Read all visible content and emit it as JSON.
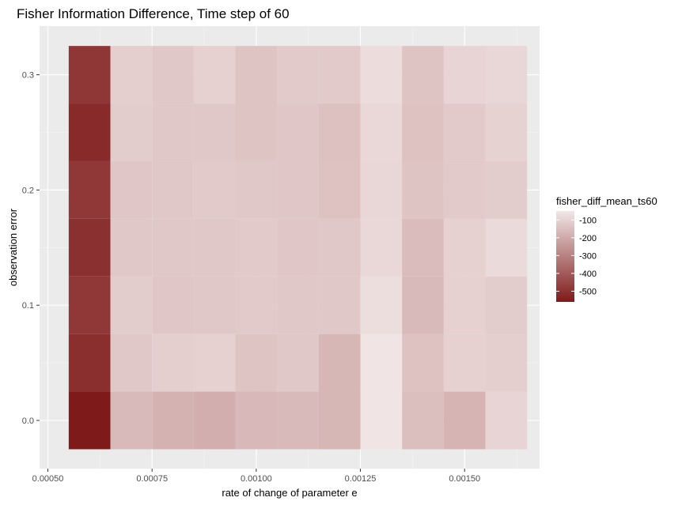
{
  "chart_data": {
    "type": "heatmap",
    "title": "Fisher Information Difference, Time step of 60",
    "xlabel": "rate of change of parameter e",
    "ylabel": "observation error",
    "x_ticks": [
      "0.00050",
      "0.00075",
      "0.00100",
      "0.00125",
      "0.00150"
    ],
    "y_ticks": [
      "0.0",
      "0.1",
      "0.2",
      "0.3"
    ],
    "xlim": [
      0.00048,
      0.00168
    ],
    "ylim": [
      -0.025,
      0.3
    ],
    "x": [
      0.0006,
      0.0007,
      0.0008,
      0.0009,
      0.001,
      0.0011,
      0.0012,
      0.0013,
      0.0014,
      0.0015,
      0.0016
    ],
    "y": [
      0.0,
      0.05,
      0.1,
      0.15,
      0.2,
      0.25,
      0.3
    ],
    "values": [
      [
        -560,
        -160,
        -180,
        -190,
        -165,
        -160,
        -170,
        -55,
        -150,
        -175,
        -95
      ],
      [
        -510,
        -125,
        -110,
        -105,
        -135,
        -125,
        -170,
        -55,
        -140,
        -105,
        -110
      ],
      [
        -485,
        -115,
        -130,
        -125,
        -120,
        -125,
        -125,
        -70,
        -160,
        -105,
        -115
      ],
      [
        -505,
        -125,
        -125,
        -125,
        -120,
        -130,
        -125,
        -85,
        -155,
        -105,
        -80
      ],
      [
        -485,
        -130,
        -125,
        -120,
        -125,
        -130,
        -140,
        -90,
        -135,
        -120,
        -115
      ],
      [
        -520,
        -115,
        -125,
        -125,
        -135,
        -130,
        -145,
        -85,
        -140,
        -120,
        -100
      ],
      [
        -490,
        -110,
        -125,
        -105,
        -135,
        -120,
        -120,
        -75,
        -135,
        -95,
        -90
      ]
    ],
    "legend": {
      "title": "fisher_diff_mean_ts60",
      "labels": [
        "-100",
        "-200",
        "-300",
        "-400",
        "-500"
      ],
      "breaks": [
        -100,
        -200,
        -300,
        -400,
        -500
      ],
      "range": [
        -560,
        -50
      ],
      "low_color": "#7f1a1a",
      "high_color": "#f2e6e6",
      "placement": "right"
    },
    "panel_background": "#ebebeb",
    "grid": true
  }
}
